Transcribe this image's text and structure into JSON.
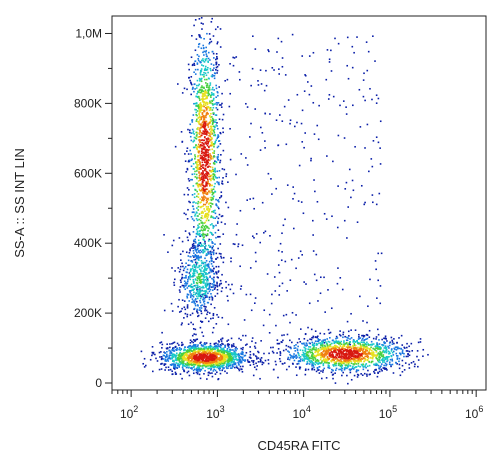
{
  "chart_data": {
    "type": "scatter",
    "subtype": "flow-cytometry-density-dot-plot",
    "xlabel": "CD45RA FITC",
    "ylabel": "SS-A :: SS INT LIN",
    "x_scale": "log",
    "y_scale": "linear",
    "xlim": [
      60,
      1300000
    ],
    "ylim": [
      -20000,
      1050000
    ],
    "x_ticks": [
      {
        "value": 100,
        "base": "10",
        "exp": "2"
      },
      {
        "value": 1000,
        "base": "10",
        "exp": "3"
      },
      {
        "value": 10000,
        "base": "10",
        "exp": "4"
      },
      {
        "value": 100000,
        "base": "10",
        "exp": "5"
      },
      {
        "value": 1000000,
        "base": "10",
        "exp": "6"
      }
    ],
    "y_ticks": [
      {
        "value": 0,
        "label": "0"
      },
      {
        "value": 200000,
        "label": "200K"
      },
      {
        "value": 400000,
        "label": "400K"
      },
      {
        "value": 600000,
        "label": "600K"
      },
      {
        "value": 800000,
        "label": "800K"
      },
      {
        "value": 1000000,
        "label": "1,0M"
      }
    ],
    "populations": [
      {
        "x_center": 700,
        "y_center": 650000,
        "x_spread_decades": 0.09,
        "y_spread": 180000,
        "density": "high"
      },
      {
        "x_center": 600,
        "y_center": 300000,
        "x_spread_decades": 0.12,
        "y_spread": 60000,
        "density": "medium"
      },
      {
        "x_center": 700,
        "y_center": 75000,
        "x_spread_decades": 0.25,
        "y_spread": 20000,
        "density": "high"
      },
      {
        "x_center": 30000,
        "y_center": 85000,
        "x_spread_decades": 0.35,
        "y_spread": 25000,
        "density": "high"
      }
    ],
    "grid": false,
    "legend": "none",
    "colormap": [
      "#0a1ea8",
      "#1a78e0",
      "#18c8c8",
      "#48d040",
      "#e8e020",
      "#f08010",
      "#d81810"
    ]
  }
}
